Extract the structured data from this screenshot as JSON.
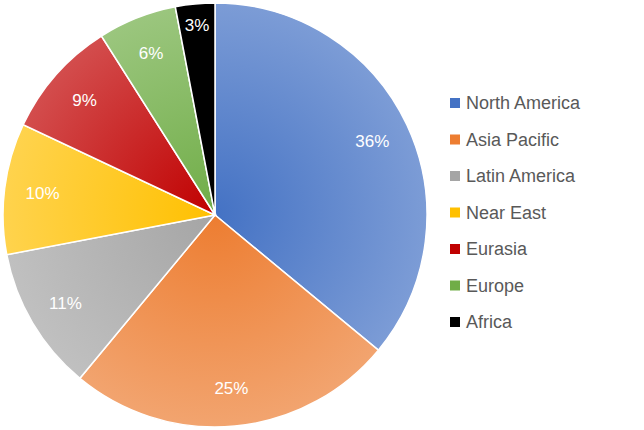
{
  "chart_data": {
    "type": "pie",
    "categories": [
      "North America",
      "Asia Pacific",
      "Latin America",
      "Near East",
      "Eurasia",
      "Europe",
      "Africa"
    ],
    "values": [
      36,
      25,
      11,
      10,
      9,
      6,
      3
    ],
    "value_labels": [
      "36%",
      "25%",
      "11%",
      "10%",
      "9%",
      "6%",
      "3%"
    ],
    "colors": [
      "#4472c4",
      "#ed7d31",
      "#a5a5a5",
      "#ffc000",
      "#c00000",
      "#70ad47",
      "#000000"
    ],
    "data_labels": true,
    "legend": "right"
  }
}
